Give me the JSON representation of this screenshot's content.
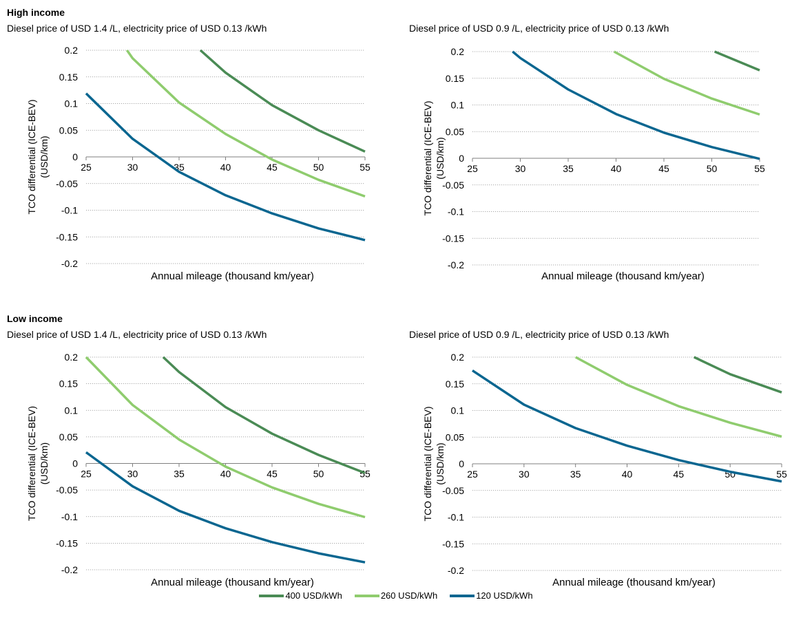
{
  "sections": [
    {
      "title": "High income"
    },
    {
      "title": "Low income"
    }
  ],
  "legend": [
    {
      "label": "400 USD/kWh",
      "color": "#4a8b55"
    },
    {
      "label": "260 USD/kWh",
      "color": "#8fcc6e"
    },
    {
      "label": "120 USD/kWh",
      "color": "#0a6690"
    }
  ],
  "chart_data": [
    {
      "type": "line",
      "section": "High income",
      "title": "Diesel price of USD 1.4 /L, electricity price of USD 0.13 /kWh",
      "xlabel": "Annual mileage (thousand km/year)",
      "ylabel": "TCO differential (ICE-BEV) (USD/km)",
      "xlim": [
        25,
        55
      ],
      "ylim": [
        -0.2,
        0.2
      ],
      "xticks": [
        "25",
        "30",
        "35",
        "40",
        "45",
        "50",
        "55"
      ],
      "yticks": [
        "0.2",
        "0.15",
        "0.1",
        "0.05",
        "0",
        "-0.05",
        "-0.1",
        "-0.15",
        "-0.2"
      ],
      "grid": true,
      "series": [
        {
          "name": "400 USD/kWh",
          "color": "#4a8b55",
          "x": [
            37.3,
            40,
            45,
            50,
            55
          ],
          "y": [
            0.2,
            0.158,
            0.097,
            0.05,
            0.01
          ]
        },
        {
          "name": "260 USD/kWh",
          "color": "#8fcc6e",
          "x": [
            29.4,
            30,
            35,
            40,
            45,
            50,
            55
          ],
          "y": [
            0.2,
            0.185,
            0.102,
            0.043,
            -0.005,
            -0.043,
            -0.074
          ]
        },
        {
          "name": "120 USD/kWh",
          "color": "#0a6690",
          "x": [
            25,
            30,
            35,
            40,
            45,
            50,
            55
          ],
          "y": [
            0.119,
            0.034,
            -0.028,
            -0.072,
            -0.106,
            -0.134,
            -0.156
          ]
        }
      ]
    },
    {
      "type": "line",
      "section": "High income",
      "title": "Diesel price of USD 0.9 /L, electricity price of USD 0.13 /kWh",
      "xlabel": "Annual mileage (thousand km/year)",
      "ylabel": "TCO differential (ICE-BEV) (USD/km)",
      "xlim": [
        25,
        55
      ],
      "ylim": [
        -0.2,
        0.2
      ],
      "xticks": [
        "25",
        "30",
        "35",
        "40",
        "45",
        "50",
        "55"
      ],
      "yticks": [
        "0.2",
        "0.15",
        "0.1",
        "0.05",
        "0",
        "-0.05",
        "-0.1",
        "-0.15",
        "-0.2"
      ],
      "grid": true,
      "series": [
        {
          "name": "400 USD/kWh",
          "color": "#4a8b55",
          "x": [
            50.3,
            55
          ],
          "y": [
            0.2,
            0.165
          ]
        },
        {
          "name": "260 USD/kWh",
          "color": "#8fcc6e",
          "x": [
            39.8,
            45,
            50,
            55
          ],
          "y": [
            0.2,
            0.149,
            0.112,
            0.082
          ]
        },
        {
          "name": "120 USD/kWh",
          "color": "#0a6690",
          "x": [
            29.2,
            30,
            35,
            40,
            45,
            50,
            55
          ],
          "y": [
            0.2,
            0.188,
            0.129,
            0.083,
            0.048,
            0.021,
            -0.001
          ]
        }
      ]
    },
    {
      "type": "line",
      "section": "Low income",
      "title": "Diesel price of USD 1.4 /L, electricity price of USD 0.13 /kWh",
      "xlabel": "Annual mileage (thousand km/year)",
      "ylabel": "TCO differential (ICE-BEV) (USD/km)",
      "xlim": [
        25,
        55
      ],
      "ylim": [
        -0.2,
        0.2
      ],
      "xticks": [
        "25",
        "30",
        "35",
        "40",
        "45",
        "50",
        "55"
      ],
      "yticks": [
        "0.2",
        "0.15",
        "0.1",
        "0.05",
        "0",
        "-0.05",
        "-0.1",
        "-0.15",
        "-0.2"
      ],
      "grid": true,
      "series": [
        {
          "name": "400 USD/kWh",
          "color": "#4a8b55",
          "x": [
            33.3,
            35,
            40,
            45,
            50,
            55
          ],
          "y": [
            0.2,
            0.172,
            0.106,
            0.056,
            0.016,
            -0.018
          ]
        },
        {
          "name": "260 USD/kWh",
          "color": "#8fcc6e",
          "x": [
            25,
            30,
            35,
            40,
            45,
            50,
            55
          ],
          "y": [
            0.2,
            0.11,
            0.045,
            -0.006,
            -0.045,
            -0.076,
            -0.101
          ]
        },
        {
          "name": "120 USD/kWh",
          "color": "#0a6690",
          "x": [
            25,
            30,
            35,
            40,
            45,
            50,
            55
          ],
          "y": [
            0.021,
            -0.043,
            -0.089,
            -0.122,
            -0.148,
            -0.169,
            -0.186
          ]
        }
      ]
    },
    {
      "type": "line",
      "section": "Low income",
      "title": "Diesel price of USD 0.9 /L, electricity price of USD 0.13 /kWh",
      "xlabel": "Annual mileage (thousand km/year)",
      "ylabel": "TCO differential (ICE-BEV) (USD/km)",
      "xlim": [
        25,
        55
      ],
      "ylim": [
        -0.2,
        0.2
      ],
      "xticks": [
        "25",
        "30",
        "35",
        "40",
        "45",
        "50",
        "55"
      ],
      "yticks": [
        "0.2",
        "0.15",
        "0.1",
        "0.05",
        "0",
        "-0.05",
        "-0.1",
        "-0.15",
        "-0.2"
      ],
      "grid": true,
      "series": [
        {
          "name": "400 USD/kWh",
          "color": "#4a8b55",
          "x": [
            46.5,
            50,
            55
          ],
          "y": [
            0.2,
            0.168,
            0.134
          ]
        },
        {
          "name": "260 USD/kWh",
          "color": "#8fcc6e",
          "x": [
            35,
            40,
            45,
            50,
            55
          ],
          "y": [
            0.2,
            0.148,
            0.108,
            0.077,
            0.051
          ]
        },
        {
          "name": "120 USD/kWh",
          "color": "#0a6690",
          "x": [
            25,
            30,
            35,
            40,
            45,
            50,
            55
          ],
          "y": [
            0.175,
            0.111,
            0.067,
            0.034,
            0.007,
            -0.015,
            -0.033
          ]
        }
      ]
    }
  ]
}
